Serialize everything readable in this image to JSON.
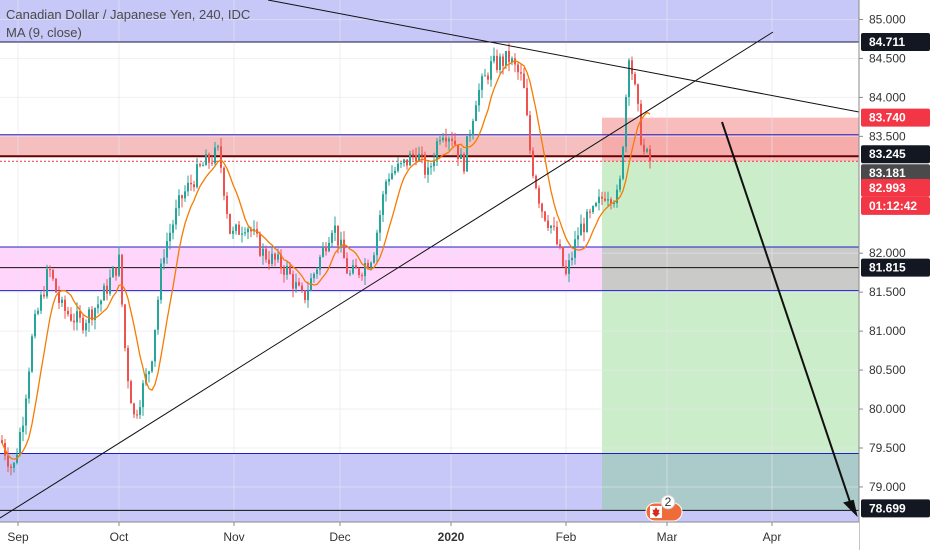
{
  "legend": {
    "title": "Canadian Dollar / Japanese Yen, 240, IDC",
    "indicator": "MA (9, close)"
  },
  "colors": {
    "up_candle": "#26a69a",
    "down_candle": "#ef5350",
    "ma_line": "#f57c00",
    "range_bg": "#c7c8f8",
    "red_zone": "#f5b4b4",
    "pink_zone": "#ffd0fb",
    "stop_zone": "#f7a6a6",
    "target_zone": "#c9ecc6",
    "target_overlap": "#a9c9c9",
    "grey_zone": "#c9c9c9",
    "blue_line": "#1f1fc9"
  },
  "chart_data": {
    "type": "candlestick",
    "title": "Canadian Dollar / Japanese Yen, 240, IDC",
    "indicator": "MA (9, close)",
    "ylim": [
      78.55,
      85.25
    ],
    "y_ticks": [
      "85.000",
      "84.500",
      "84.000",
      "83.500",
      "82.000",
      "81.500",
      "81.000",
      "80.500",
      "80.000",
      "79.500",
      "79.000"
    ],
    "x_ticks": [
      "Sep",
      "Oct",
      "Nov",
      "Dec",
      "2020",
      "Feb",
      "Mar",
      "Apr"
    ],
    "approx_close_path": [
      {
        "date": "Sep",
        "value": 79.6
      },
      {
        "date": "Mid Sep",
        "value": 81.8
      },
      {
        "date": "Late Sep",
        "value": 81.2
      },
      {
        "date": "Early Oct",
        "value": 81.9
      },
      {
        "date": "Mid Oct",
        "value": 79.9
      },
      {
        "date": "Late Oct",
        "value": 83.3
      },
      {
        "date": "Nov",
        "value": 82.0
      },
      {
        "date": "Mid Nov",
        "value": 81.4
      },
      {
        "date": "Dec",
        "value": 81.6
      },
      {
        "date": "Mid Dec",
        "value": 83.3
      },
      {
        "date": "2020",
        "value": 83.8
      },
      {
        "date": "Mid Jan",
        "value": 84.5
      },
      {
        "date": "Late Jan",
        "value": 82.6
      },
      {
        "date": "Feb",
        "value": 81.6
      },
      {
        "date": "Mid Feb",
        "value": 82.8
      },
      {
        "date": "Late Feb",
        "value": 84.7
      },
      {
        "date": "End Feb",
        "value": 83.18
      }
    ],
    "horizontal_levels": [
      "84.711",
      "83.245",
      "81.815",
      "78.699"
    ],
    "price_labels": [
      {
        "value": "84.711",
        "bg": "#131722",
        "fg": "#ffffff"
      },
      {
        "value": "83.740",
        "bg": "#f23645",
        "fg": "#ffffff"
      },
      {
        "value": "83.245",
        "bg": "#131722",
        "fg": "#ffffff"
      },
      {
        "value": "83.181",
        "bg": "#4a4a4a",
        "fg": "#ffffff"
      },
      {
        "value": "82.993",
        "bg": "#f23645",
        "fg": "#ffffff"
      },
      {
        "value": "01:12:42",
        "bg": "#f23645",
        "fg": "#ffffff"
      },
      {
        "value": "81.815",
        "bg": "#131722",
        "fg": "#ffffff"
      },
      {
        "value": "78.699",
        "bg": "#131722",
        "fg": "#ffffff"
      }
    ],
    "position_tool": {
      "entry": 83.181,
      "stop": 83.74,
      "target": 78.699
    },
    "event_badge": {
      "count": "2",
      "icon": "canada-flag-icon"
    }
  }
}
